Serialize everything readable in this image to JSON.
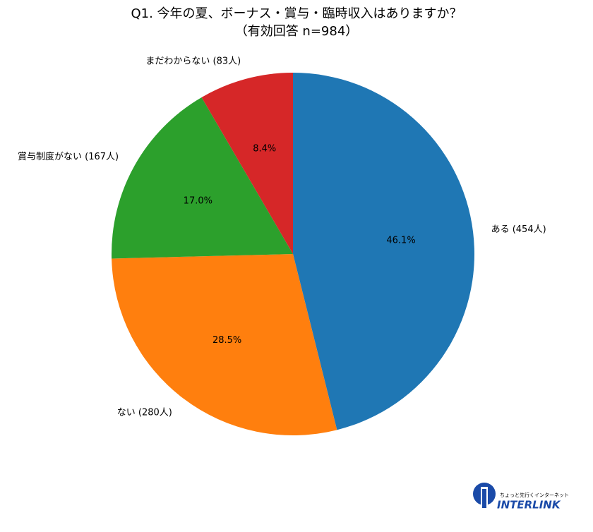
{
  "chart_data": {
    "type": "pie",
    "title": "Q1. 今年の夏、ボーナス・賞与・臨時収入はありますか？",
    "subtitle": "（有効回答 n=984）",
    "categories": [
      "ある (454人)",
      "ない (280人)",
      "賞与制度がない (167人)",
      "まだわからない (83人)"
    ],
    "values": [
      46.1,
      28.5,
      17.0,
      8.4
    ],
    "value_labels": [
      "46.1%",
      "28.5%",
      "17.0%",
      "8.4%"
    ],
    "colors": [
      "#1f77b4",
      "#ff7f0e",
      "#2ca02c",
      "#d62728"
    ]
  },
  "logo": {
    "tagline": "ちょっと先行くインターネット",
    "name": "INTERLINK"
  }
}
